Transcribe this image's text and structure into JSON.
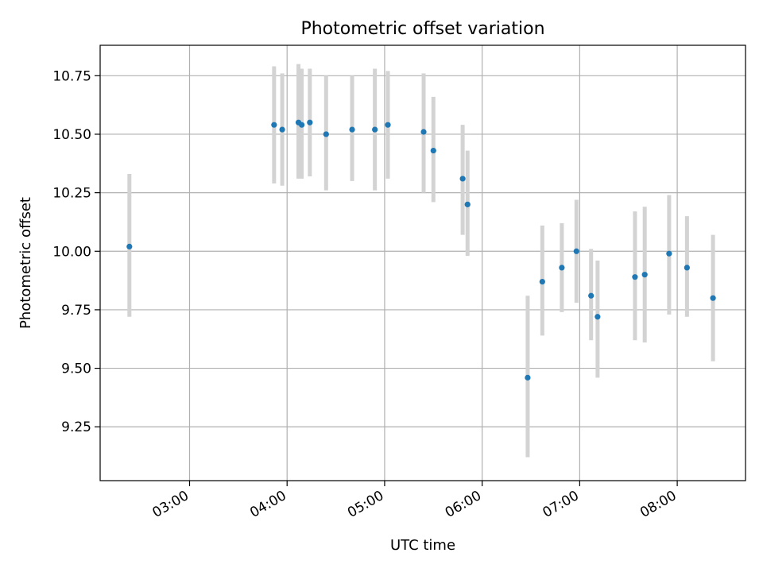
{
  "chart_data": {
    "type": "scatter",
    "title": "Photometric offset variation",
    "xlabel": "UTC time",
    "ylabel": "Photometric offset",
    "x_is_time": true,
    "xlim": [
      "02:05",
      "08:42"
    ],
    "ylim": [
      9.02,
      10.88
    ],
    "xticks": [
      "03:00",
      "04:00",
      "05:00",
      "06:00",
      "07:00",
      "08:00"
    ],
    "yticks": [
      9.25,
      9.5,
      9.75,
      10.0,
      10.25,
      10.5,
      10.75
    ],
    "ytick_labels": [
      "9.25",
      "9.50",
      "9.75",
      "10.00",
      "10.25",
      "10.50",
      "10.75"
    ],
    "grid": true,
    "marker_color": "#1f77b4",
    "errorbar_color": "#d3d3d3",
    "points": [
      {
        "x": "02:23",
        "y": 10.02,
        "ylow": 9.72,
        "yhigh": 10.33
      },
      {
        "x": "03:52",
        "y": 10.54,
        "ylow": 10.29,
        "yhigh": 10.79
      },
      {
        "x": "03:57",
        "y": 10.52,
        "ylow": 10.28,
        "yhigh": 10.76
      },
      {
        "x": "04:07",
        "y": 10.55,
        "ylow": 10.31,
        "yhigh": 10.8
      },
      {
        "x": "04:09",
        "y": 10.54,
        "ylow": 10.31,
        "yhigh": 10.78
      },
      {
        "x": "04:14",
        "y": 10.55,
        "ylow": 10.32,
        "yhigh": 10.78
      },
      {
        "x": "04:24",
        "y": 10.5,
        "ylow": 10.26,
        "yhigh": 10.75
      },
      {
        "x": "04:40",
        "y": 10.52,
        "ylow": 10.3,
        "yhigh": 10.75
      },
      {
        "x": "04:54",
        "y": 10.52,
        "ylow": 10.26,
        "yhigh": 10.78
      },
      {
        "x": "05:02",
        "y": 10.54,
        "ylow": 10.31,
        "yhigh": 10.77
      },
      {
        "x": "05:24",
        "y": 10.51,
        "ylow": 10.25,
        "yhigh": 10.76
      },
      {
        "x": "05:30",
        "y": 10.43,
        "ylow": 10.21,
        "yhigh": 10.66
      },
      {
        "x": "05:48",
        "y": 10.31,
        "ylow": 10.07,
        "yhigh": 10.54
      },
      {
        "x": "05:51",
        "y": 10.2,
        "ylow": 9.98,
        "yhigh": 10.43
      },
      {
        "x": "06:28",
        "y": 9.46,
        "ylow": 9.12,
        "yhigh": 9.81
      },
      {
        "x": "06:37",
        "y": 9.87,
        "ylow": 9.64,
        "yhigh": 10.11
      },
      {
        "x": "06:49",
        "y": 9.93,
        "ylow": 9.74,
        "yhigh": 10.12
      },
      {
        "x": "06:58",
        "y": 10.0,
        "ylow": 9.78,
        "yhigh": 10.22
      },
      {
        "x": "07:07",
        "y": 9.81,
        "ylow": 9.62,
        "yhigh": 10.01
      },
      {
        "x": "07:11",
        "y": 9.72,
        "ylow": 9.46,
        "yhigh": 9.96
      },
      {
        "x": "07:34",
        "y": 9.89,
        "ylow": 9.62,
        "yhigh": 10.17
      },
      {
        "x": "07:40",
        "y": 9.9,
        "ylow": 9.61,
        "yhigh": 10.19
      },
      {
        "x": "07:55",
        "y": 9.99,
        "ylow": 9.73,
        "yhigh": 10.24
      },
      {
        "x": "08:06",
        "y": 9.93,
        "ylow": 9.72,
        "yhigh": 10.15
      },
      {
        "x": "08:22",
        "y": 9.8,
        "ylow": 9.53,
        "yhigh": 10.07
      }
    ]
  }
}
